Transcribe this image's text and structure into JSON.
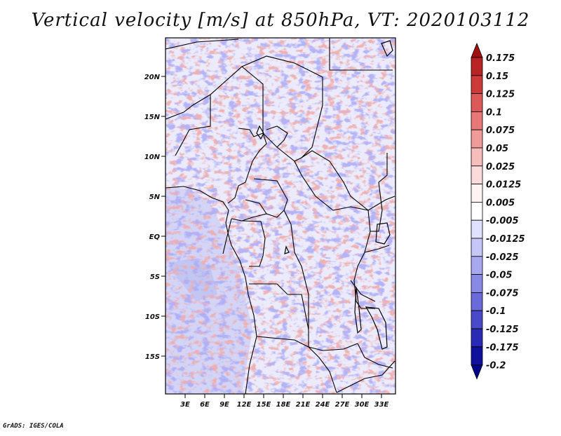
{
  "title": "Vertical velocity [m/s] at 850hPa, VT: 2020103112",
  "credit": "GrADS: IGES/COLA",
  "map": {
    "lat_labels": [
      "20N",
      "15N",
      "10N",
      "5N",
      "EQ",
      "5S",
      "10S",
      "15S"
    ],
    "lon_labels": [
      "3E",
      "6E",
      "9E",
      "12E",
      "15E",
      "18E",
      "21E",
      "24E",
      "27E",
      "30E",
      "33E"
    ]
  },
  "colorbar": {
    "levels": [
      "0.175",
      "0.15",
      "0.125",
      "0.1",
      "0.075",
      "0.05",
      "0.025",
      "0.0125",
      "0.005",
      "-0.005",
      "-0.0125",
      "-0.025",
      "-0.05",
      "-0.075",
      "-0.1",
      "-0.125",
      "-0.175",
      "-0.2"
    ],
    "colors": [
      "#a01010",
      "#b82424",
      "#cc3a3a",
      "#dd5858",
      "#e87878",
      "#f19a9a",
      "#f7bcbc",
      "#fbdada",
      "#fff2f2",
      "#ffffff",
      "#e0e0ff",
      "#c6c6f8",
      "#a8a8f0",
      "#8a8ae6",
      "#6a6ad8",
      "#4a4ac8",
      "#2a2ab4",
      "#10109a",
      "#00008a"
    ]
  }
}
